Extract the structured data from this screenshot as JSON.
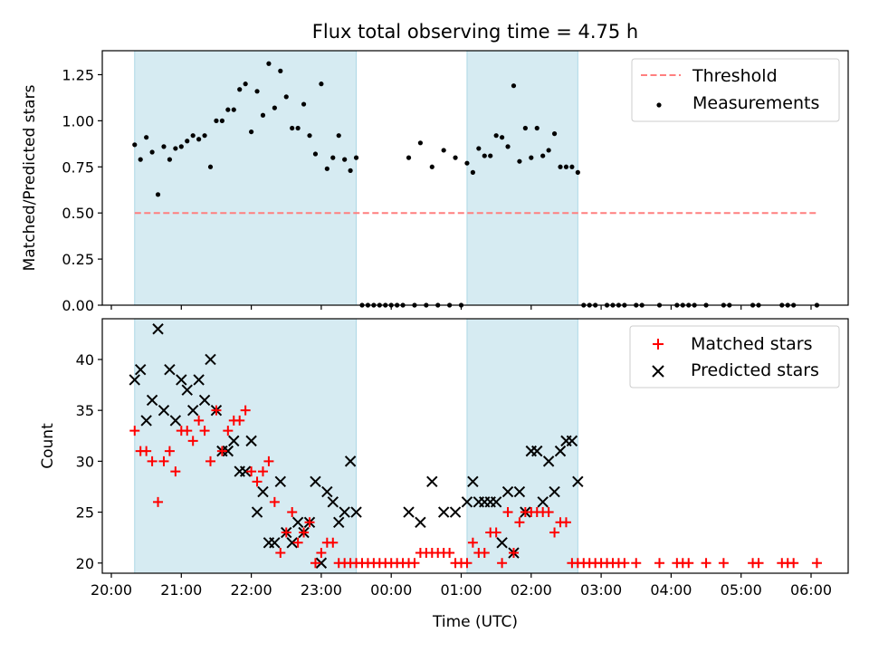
{
  "title": "Flux total observing time = 4.75 h",
  "xlabel": "Time (UTC)",
  "x_ticks": [
    "20:00",
    "21:00",
    "22:00",
    "23:00",
    "00:00",
    "01:00",
    "02:00",
    "03:00",
    "04:00",
    "05:00",
    "06:00"
  ],
  "colors": {
    "shade": "#add8e6",
    "threshold": "#ff7f7f",
    "matched": "#ff0000",
    "predicted": "#000000",
    "measurement": "#000000"
  },
  "shaded_intervals": [
    [
      "20:20",
      "23:30"
    ],
    [
      "01:05",
      "02:40"
    ]
  ],
  "chart_data": [
    {
      "type": "scatter",
      "ylabel": "Matched/Predicted stars",
      "ylim": [
        0,
        1.38
      ],
      "y_ticks": [
        "0.00",
        "0.25",
        "0.50",
        "0.75",
        "1.00",
        "1.25"
      ],
      "threshold": {
        "name": "Threshold",
        "value": 0.5,
        "x_range": [
          "20:20",
          "06:05"
        ]
      },
      "series_name": "Measurements",
      "legend_position": "top-right",
      "points": [
        [
          "20:20",
          0.87
        ],
        [
          "20:25",
          0.79
        ],
        [
          "20:30",
          0.91
        ],
        [
          "20:35",
          0.83
        ],
        [
          "20:40",
          0.6
        ],
        [
          "20:45",
          0.86
        ],
        [
          "20:50",
          0.79
        ],
        [
          "20:55",
          0.85
        ],
        [
          "21:00",
          0.86
        ],
        [
          "21:05",
          0.89
        ],
        [
          "21:10",
          0.92
        ],
        [
          "21:15",
          0.9
        ],
        [
          "21:20",
          0.92
        ],
        [
          "21:25",
          0.75
        ],
        [
          "21:30",
          1.0
        ],
        [
          "21:35",
          1.0
        ],
        [
          "21:40",
          1.06
        ],
        [
          "21:45",
          1.06
        ],
        [
          "21:50",
          1.17
        ],
        [
          "21:55",
          1.2
        ],
        [
          "22:00",
          0.94
        ],
        [
          "22:05",
          1.16
        ],
        [
          "22:10",
          1.03
        ],
        [
          "22:15",
          1.31
        ],
        [
          "22:20",
          1.07
        ],
        [
          "22:25",
          1.27
        ],
        [
          "22:30",
          1.13
        ],
        [
          "22:35",
          0.96
        ],
        [
          "22:40",
          0.96
        ],
        [
          "22:45",
          1.09
        ],
        [
          "22:50",
          0.92
        ],
        [
          "22:55",
          0.82
        ],
        [
          "23:00",
          1.2
        ],
        [
          "23:05",
          0.74
        ],
        [
          "23:10",
          0.8
        ],
        [
          "23:15",
          0.92
        ],
        [
          "23:20",
          0.79
        ],
        [
          "23:25",
          0.73
        ],
        [
          "23:30",
          0.8
        ],
        [
          "23:35",
          0.0
        ],
        [
          "23:40",
          0.0
        ],
        [
          "23:45",
          0.0
        ],
        [
          "23:50",
          0.0
        ],
        [
          "23:55",
          0.0
        ],
        [
          "00:00",
          0.0
        ],
        [
          "00:05",
          0.0
        ],
        [
          "00:10",
          0.0
        ],
        [
          "00:15",
          0.8
        ],
        [
          "00:25",
          0.88
        ],
        [
          "00:35",
          0.75
        ],
        [
          "00:45",
          0.84
        ],
        [
          "00:55",
          0.8
        ],
        [
          "01:05",
          0.77
        ],
        [
          "01:10",
          0.72
        ],
        [
          "01:15",
          0.85
        ],
        [
          "01:20",
          0.81
        ],
        [
          "01:25",
          0.81
        ],
        [
          "01:30",
          0.92
        ],
        [
          "01:35",
          0.91
        ],
        [
          "01:40",
          0.86
        ],
        [
          "01:45",
          1.19
        ],
        [
          "01:50",
          0.78
        ],
        [
          "01:55",
          0.96
        ],
        [
          "02:00",
          0.8
        ],
        [
          "02:05",
          0.96
        ],
        [
          "02:10",
          0.81
        ],
        [
          "02:15",
          0.84
        ],
        [
          "02:20",
          0.93
        ],
        [
          "02:25",
          0.75
        ],
        [
          "02:30",
          0.75
        ],
        [
          "02:35",
          0.75
        ],
        [
          "02:40",
          0.72
        ],
        [
          "00:20",
          0.0
        ],
        [
          "00:30",
          0.0
        ],
        [
          "00:40",
          0.0
        ],
        [
          "00:50",
          0.0
        ],
        [
          "01:00",
          0.0
        ],
        [
          "02:45",
          0.0
        ],
        [
          "02:50",
          0.0
        ],
        [
          "02:55",
          0.0
        ],
        [
          "03:05",
          0.0
        ],
        [
          "03:10",
          0.0
        ],
        [
          "03:15",
          0.0
        ],
        [
          "03:20",
          0.0
        ],
        [
          "03:30",
          0.0
        ],
        [
          "03:35",
          0.0
        ],
        [
          "03:50",
          0.0
        ],
        [
          "04:05",
          0.0
        ],
        [
          "04:10",
          0.0
        ],
        [
          "04:15",
          0.0
        ],
        [
          "04:20",
          0.0
        ],
        [
          "04:30",
          0.0
        ],
        [
          "04:45",
          0.0
        ],
        [
          "04:50",
          0.0
        ],
        [
          "05:10",
          0.0
        ],
        [
          "05:15",
          0.0
        ],
        [
          "05:35",
          0.0
        ],
        [
          "05:40",
          0.0
        ],
        [
          "05:45",
          0.0
        ],
        [
          "06:05",
          0.0
        ]
      ]
    },
    {
      "type": "scatter",
      "ylabel": "Count",
      "ylim": [
        19,
        44
      ],
      "y_ticks": [
        "20",
        "25",
        "30",
        "35",
        "40"
      ],
      "legend_position": "top-right",
      "series": [
        {
          "name": "Matched stars",
          "marker": "+",
          "points": [
            [
              "20:20",
              33
            ],
            [
              "20:25",
              31
            ],
            [
              "20:30",
              31
            ],
            [
              "20:35",
              30
            ],
            [
              "20:40",
              26
            ],
            [
              "20:45",
              30
            ],
            [
              "20:50",
              31
            ],
            [
              "20:55",
              29
            ],
            [
              "21:00",
              33
            ],
            [
              "21:05",
              33
            ],
            [
              "21:10",
              32
            ],
            [
              "21:15",
              34
            ],
            [
              "21:20",
              33
            ],
            [
              "21:25",
              30
            ],
            [
              "21:30",
              35
            ],
            [
              "21:35",
              31
            ],
            [
              "21:40",
              33
            ],
            [
              "21:45",
              34
            ],
            [
              "21:50",
              34
            ],
            [
              "21:55",
              35
            ],
            [
              "22:00",
              29
            ],
            [
              "22:05",
              28
            ],
            [
              "22:10",
              29
            ],
            [
              "22:15",
              30
            ],
            [
              "22:20",
              26
            ],
            [
              "22:25",
              21
            ],
            [
              "22:30",
              23
            ],
            [
              "22:35",
              25
            ],
            [
              "22:40",
              22
            ],
            [
              "22:45",
              23
            ],
            [
              "22:50",
              24
            ],
            [
              "22:55",
              20
            ],
            [
              "23:00",
              21
            ],
            [
              "23:05",
              22
            ],
            [
              "23:10",
              22
            ],
            [
              "23:15",
              20
            ],
            [
              "23:20",
              20
            ],
            [
              "23:25",
              20
            ],
            [
              "23:30",
              20
            ],
            [
              "23:35",
              20
            ],
            [
              "23:40",
              20
            ],
            [
              "23:45",
              20
            ],
            [
              "23:50",
              20
            ],
            [
              "23:55",
              20
            ],
            [
              "00:00",
              20
            ],
            [
              "00:05",
              20
            ],
            [
              "00:10",
              20
            ],
            [
              "00:15",
              20
            ],
            [
              "00:20",
              20
            ],
            [
              "00:25",
              21
            ],
            [
              "00:30",
              21
            ],
            [
              "00:35",
              21
            ],
            [
              "00:40",
              21
            ],
            [
              "00:45",
              21
            ],
            [
              "00:50",
              21
            ],
            [
              "00:55",
              20
            ],
            [
              "01:00",
              20
            ],
            [
              "01:05",
              20
            ],
            [
              "01:10",
              22
            ],
            [
              "01:15",
              21
            ],
            [
              "01:20",
              21
            ],
            [
              "01:25",
              23
            ],
            [
              "01:30",
              23
            ],
            [
              "01:35",
              20
            ],
            [
              "01:40",
              25
            ],
            [
              "01:45",
              21
            ],
            [
              "01:50",
              24
            ],
            [
              "01:55",
              25
            ],
            [
              "02:00",
              25
            ],
            [
              "02:05",
              25
            ],
            [
              "02:10",
              25
            ],
            [
              "02:15",
              25
            ],
            [
              "02:20",
              23
            ],
            [
              "02:25",
              24
            ],
            [
              "02:30",
              24
            ],
            [
              "02:35",
              20
            ],
            [
              "02:40",
              20
            ],
            [
              "02:45",
              20
            ],
            [
              "02:50",
              20
            ],
            [
              "02:55",
              20
            ],
            [
              "03:00",
              20
            ],
            [
              "03:05",
              20
            ],
            [
              "03:10",
              20
            ],
            [
              "03:15",
              20
            ],
            [
              "03:20",
              20
            ],
            [
              "03:30",
              20
            ],
            [
              "03:50",
              20
            ],
            [
              "04:05",
              20
            ],
            [
              "04:10",
              20
            ],
            [
              "04:15",
              20
            ],
            [
              "04:30",
              20
            ],
            [
              "04:45",
              20
            ],
            [
              "05:10",
              20
            ],
            [
              "05:15",
              20
            ],
            [
              "05:35",
              20
            ],
            [
              "05:40",
              20
            ],
            [
              "05:45",
              20
            ],
            [
              "06:05",
              20
            ]
          ]
        },
        {
          "name": "Predicted stars",
          "marker": "x",
          "points": [
            [
              "20:20",
              38
            ],
            [
              "20:25",
              39
            ],
            [
              "20:30",
              34
            ],
            [
              "20:35",
              36
            ],
            [
              "20:40",
              43
            ],
            [
              "20:45",
              35
            ],
            [
              "20:50",
              39
            ],
            [
              "20:55",
              34
            ],
            [
              "21:00",
              38
            ],
            [
              "21:05",
              37
            ],
            [
              "21:10",
              35
            ],
            [
              "21:15",
              38
            ],
            [
              "21:20",
              36
            ],
            [
              "21:25",
              40
            ],
            [
              "21:30",
              35
            ],
            [
              "21:35",
              31
            ],
            [
              "21:40",
              31
            ],
            [
              "21:45",
              32
            ],
            [
              "21:50",
              29
            ],
            [
              "21:55",
              29
            ],
            [
              "22:00",
              32
            ],
            [
              "22:05",
              25
            ],
            [
              "22:10",
              27
            ],
            [
              "22:15",
              22
            ],
            [
              "22:20",
              22
            ],
            [
              "22:25",
              28
            ],
            [
              "22:30",
              23
            ],
            [
              "22:35",
              22
            ],
            [
              "22:40",
              24
            ],
            [
              "22:45",
              23
            ],
            [
              "22:50",
              24
            ],
            [
              "22:55",
              28
            ],
            [
              "23:00",
              20
            ],
            [
              "23:05",
              27
            ],
            [
              "23:10",
              26
            ],
            [
              "23:15",
              24
            ],
            [
              "23:20",
              25
            ],
            [
              "23:25",
              30
            ],
            [
              "23:30",
              25
            ],
            [
              "00:15",
              25
            ],
            [
              "00:25",
              24
            ],
            [
              "00:35",
              28
            ],
            [
              "00:45",
              25
            ],
            [
              "00:55",
              25
            ],
            [
              "01:05",
              26
            ],
            [
              "01:10",
              28
            ],
            [
              "01:15",
              26
            ],
            [
              "01:20",
              26
            ],
            [
              "01:25",
              26
            ],
            [
              "01:30",
              26
            ],
            [
              "01:35",
              22
            ],
            [
              "01:40",
              27
            ],
            [
              "01:45",
              21
            ],
            [
              "01:50",
              27
            ],
            [
              "01:55",
              25
            ],
            [
              "02:00",
              31
            ],
            [
              "02:05",
              31
            ],
            [
              "02:10",
              26
            ],
            [
              "02:15",
              30
            ],
            [
              "02:20",
              27
            ],
            [
              "02:25",
              31
            ],
            [
              "02:30",
              32
            ],
            [
              "02:35",
              32
            ],
            [
              "02:40",
              28
            ]
          ]
        }
      ]
    }
  ]
}
